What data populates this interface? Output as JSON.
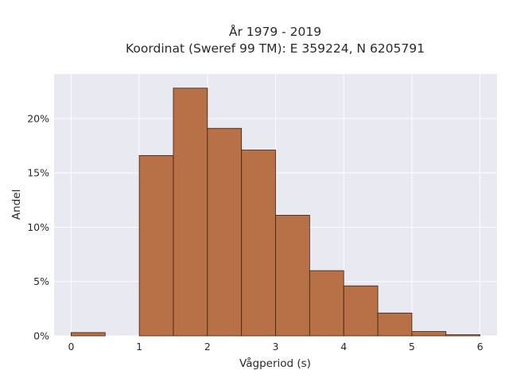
{
  "chart_data": {
    "type": "bar",
    "title": "År 1979 - 2019",
    "subtitle": "Koordinat (Sweref 99 TM): E 359224, N 6205791",
    "xlabel": "Vågperiod (s)",
    "ylabel": "Andel",
    "xlim": [
      -0.25,
      6.25
    ],
    "ylim": [
      0,
      0.241
    ],
    "x_ticks": [
      0,
      1,
      2,
      3,
      4,
      5,
      6
    ],
    "x_tick_labels": [
      "0",
      "1",
      "2",
      "3",
      "4",
      "5",
      "6"
    ],
    "y_ticks": [
      0,
      0.05,
      0.1,
      0.15,
      0.2
    ],
    "y_tick_labels": [
      "0%",
      "5%",
      "10%",
      "15%",
      "20%"
    ],
    "bins": [
      {
        "start": 0.0,
        "end": 0.5,
        "value": 0.003
      },
      {
        "start": 0.5,
        "end": 1.0,
        "value": 0.0
      },
      {
        "start": 1.0,
        "end": 1.5,
        "value": 0.166
      },
      {
        "start": 1.5,
        "end": 2.0,
        "value": 0.228
      },
      {
        "start": 2.0,
        "end": 2.5,
        "value": 0.191
      },
      {
        "start": 2.5,
        "end": 3.0,
        "value": 0.171
      },
      {
        "start": 3.0,
        "end": 3.5,
        "value": 0.111
      },
      {
        "start": 3.5,
        "end": 4.0,
        "value": 0.06
      },
      {
        "start": 4.0,
        "end": 4.5,
        "value": 0.046
      },
      {
        "start": 4.5,
        "end": 5.0,
        "value": 0.021
      },
      {
        "start": 5.0,
        "end": 5.5,
        "value": 0.004
      },
      {
        "start": 5.5,
        "end": 6.0,
        "value": 0.001
      }
    ],
    "grid": true,
    "legend": "none",
    "colors": {
      "bar_fill": "#b5693d",
      "bar_stroke": "#3a2212",
      "plot_bg": "#e9e9f1",
      "grid": "#ffffff"
    }
  }
}
